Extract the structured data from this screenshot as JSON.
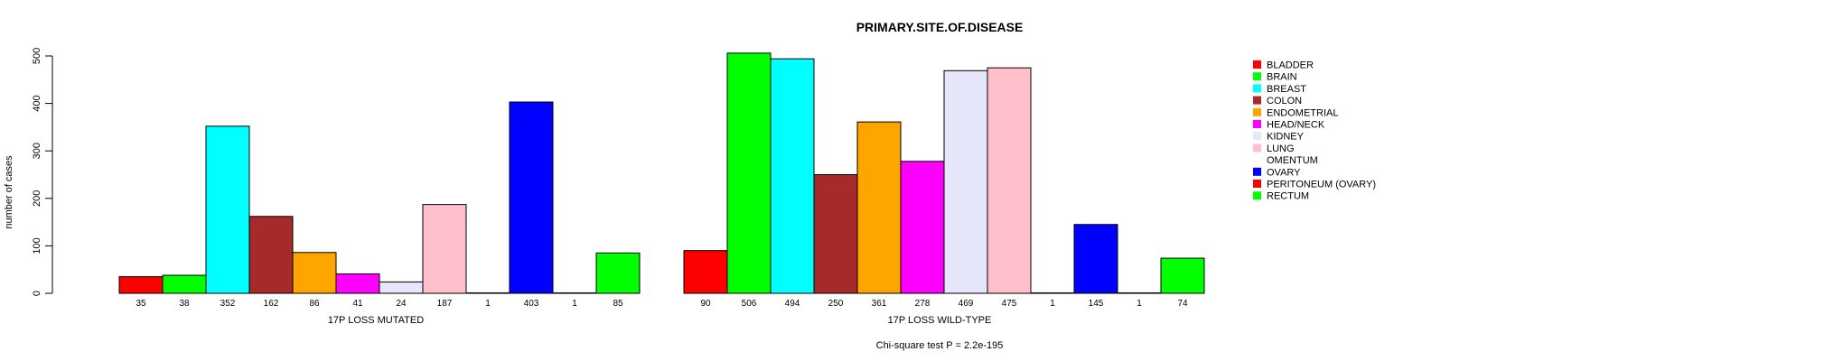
{
  "chart_data": {
    "type": "bar",
    "title": "PRIMARY.SITE.OF.DISEASE",
    "ylabel": "number of cases",
    "ylim": [
      0,
      500
    ],
    "yticks": [
      0,
      100,
      200,
      300,
      400,
      500
    ],
    "categories": [
      "BLADDER",
      "BRAIN",
      "BREAST",
      "COLON",
      "ENDOMETRIAL",
      "HEAD/NECK",
      "KIDNEY",
      "LUNG",
      "OMENTUM",
      "OVARY",
      "PERITONEUM (OVARY)",
      "RECTUM"
    ],
    "colors": [
      "#ff0000",
      "#00ff00",
      "#00ffff",
      "#a52a2a",
      "#ffa500",
      "#ff00ff",
      "#e6e6fa",
      "#ffc0cb",
      "#ffffff",
      "#0000ff",
      "#ff0000",
      "#00ff00"
    ],
    "series": [
      {
        "name": "17P LOSS MUTATED",
        "values": [
          35,
          38,
          352,
          162,
          86,
          41,
          24,
          187,
          1,
          403,
          1,
          85
        ]
      },
      {
        "name": "17P LOSS WILD-TYPE",
        "values": [
          90,
          506,
          494,
          250,
          361,
          278,
          469,
          475,
          1,
          145,
          1,
          74
        ]
      }
    ],
    "footer": "Chi-square test P = 2.2e-195",
    "legend_position": "right"
  }
}
